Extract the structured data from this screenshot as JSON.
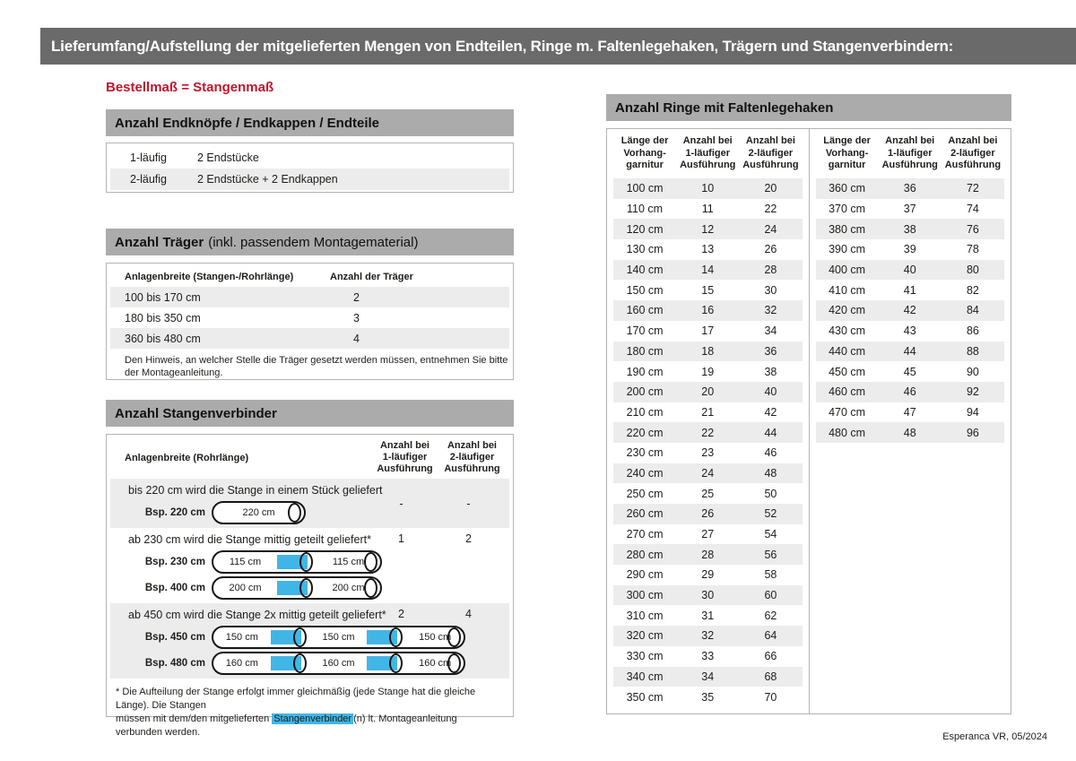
{
  "header": {
    "title": "Lieferumfang/Aufstellung der mitgelieferten Mengen von Endteilen, Ringe m. Faltenlegehaken, Trägern und Stangenverbindern:"
  },
  "subtitle": "Bestellmaß = Stangenmaß",
  "footer": "Esperanca VR, 05/2024",
  "colors": {
    "accent_red": "#c3152a",
    "highlight_blue": "#41b6e6",
    "bar_dark_gray": "#6a6a6a",
    "bar_light_gray": "#ababab",
    "row_gray": "#ececec"
  },
  "endteile": {
    "title": "Anzahl Endknöpfe / Endkappen / Endteile",
    "rows": [
      {
        "label": "1-läufig",
        "value": "2 Endstücke"
      },
      {
        "label": "2-läufig",
        "value": "2 Endstücke + 2 Endkappen"
      }
    ]
  },
  "traeger": {
    "title": "Anzahl Träger",
    "title_note": "(inkl. passendem Montagematerial)",
    "col_width": "Anlagenbreite (Stangen-/Rohrlänge)",
    "col_count": "Anzahl der Träger",
    "rows": [
      {
        "range": "100 bis 170 cm",
        "count": "2"
      },
      {
        "range": "180 bis 350 cm",
        "count": "3"
      },
      {
        "range": "360 bis 480 cm",
        "count": "4"
      }
    ],
    "note": "Den Hinweis, an welcher Stelle die Träger gesetzt werden müssen, entnehmen Sie bitte\nder Montageanleitung."
  },
  "verbinder": {
    "title": "Anzahl Stangenverbinder",
    "col_width": "Anlagenbreite (Rohrlänge)",
    "col_1": "Anzahl bei\n1-läufiger\nAusführung",
    "col_2": "Anzahl bei\n2-läufiger\nAusführung",
    "rows": [
      {
        "text": "bis 220 cm wird die Stange in einem Stück geliefert",
        "count1": "-",
        "count2": "-",
        "examples": [
          {
            "label": "Bsp. 220 cm",
            "segments": [
              "220 cm"
            ]
          }
        ]
      },
      {
        "text": "ab 230 cm wird die Stange mittig geteilt geliefert*",
        "count1": "1",
        "count2": "2",
        "examples": [
          {
            "label": "Bsp. 230 cm",
            "segments": [
              "115 cm",
              "115 cm"
            ]
          },
          {
            "label": "Bsp. 400 cm",
            "segments": [
              "200 cm",
              "200 cm"
            ]
          }
        ]
      },
      {
        "text": "ab 450 cm wird die Stange 2x mittig geteilt geliefert*",
        "count1": "2",
        "count2": "4",
        "examples": [
          {
            "label": "Bsp. 450 cm",
            "segments": [
              "150 cm",
              "150 cm",
              "150 cm"
            ]
          },
          {
            "label": "Bsp. 480 cm",
            "segments": [
              "160 cm",
              "160 cm",
              "160 cm"
            ]
          }
        ]
      }
    ],
    "footnote": {
      "before": "* Die Aufteilung der Stange erfolgt immer gleichmäßig (jede Stange hat die gleiche Länge). Die Stangen\nmüssen mit dem/den mitgelieferten ",
      "highlight": "Stangenverbinder",
      "after": "(n) lt. Montageanleitung verbunden werden."
    }
  },
  "ringe": {
    "title": "Anzahl Ringe mit Faltenlegehaken",
    "col_len": "Länge der\nVorhang-\ngarnitur",
    "col_1": "Anzahl bei\n1-läufiger\nAusführung",
    "col_2": "Anzahl bei\n2-läufiger\nAusführung",
    "left_rows": [
      [
        "100 cm",
        "10",
        "20"
      ],
      [
        "110 cm",
        "11",
        "22"
      ],
      [
        "120 cm",
        "12",
        "24"
      ],
      [
        "130 cm",
        "13",
        "26"
      ],
      [
        "140 cm",
        "14",
        "28"
      ],
      [
        "150 cm",
        "15",
        "30"
      ],
      [
        "160 cm",
        "16",
        "32"
      ],
      [
        "170 cm",
        "17",
        "34"
      ],
      [
        "180 cm",
        "18",
        "36"
      ],
      [
        "190 cm",
        "19",
        "38"
      ],
      [
        "200 cm",
        "20",
        "40"
      ],
      [
        "210 cm",
        "21",
        "42"
      ],
      [
        "220 cm",
        "22",
        "44"
      ],
      [
        "230 cm",
        "23",
        "46"
      ],
      [
        "240 cm",
        "24",
        "48"
      ],
      [
        "250 cm",
        "25",
        "50"
      ],
      [
        "260 cm",
        "26",
        "52"
      ],
      [
        "270 cm",
        "27",
        "54"
      ],
      [
        "280 cm",
        "28",
        "56"
      ],
      [
        "290 cm",
        "29",
        "58"
      ],
      [
        "300 cm",
        "30",
        "60"
      ],
      [
        "310 cm",
        "31",
        "62"
      ],
      [
        "320 cm",
        "32",
        "64"
      ],
      [
        "330 cm",
        "33",
        "66"
      ],
      [
        "340 cm",
        "34",
        "68"
      ],
      [
        "350 cm",
        "35",
        "70"
      ]
    ],
    "right_rows": [
      [
        "360 cm",
        "36",
        "72"
      ],
      [
        "370 cm",
        "37",
        "74"
      ],
      [
        "380 cm",
        "38",
        "76"
      ],
      [
        "390 cm",
        "39",
        "78"
      ],
      [
        "400 cm",
        "40",
        "80"
      ],
      [
        "410 cm",
        "41",
        "82"
      ],
      [
        "420 cm",
        "42",
        "84"
      ],
      [
        "430 cm",
        "43",
        "86"
      ],
      [
        "440 cm",
        "44",
        "88"
      ],
      [
        "450 cm",
        "45",
        "90"
      ],
      [
        "460 cm",
        "46",
        "92"
      ],
      [
        "470 cm",
        "47",
        "94"
      ],
      [
        "480 cm",
        "48",
        "96"
      ]
    ]
  }
}
